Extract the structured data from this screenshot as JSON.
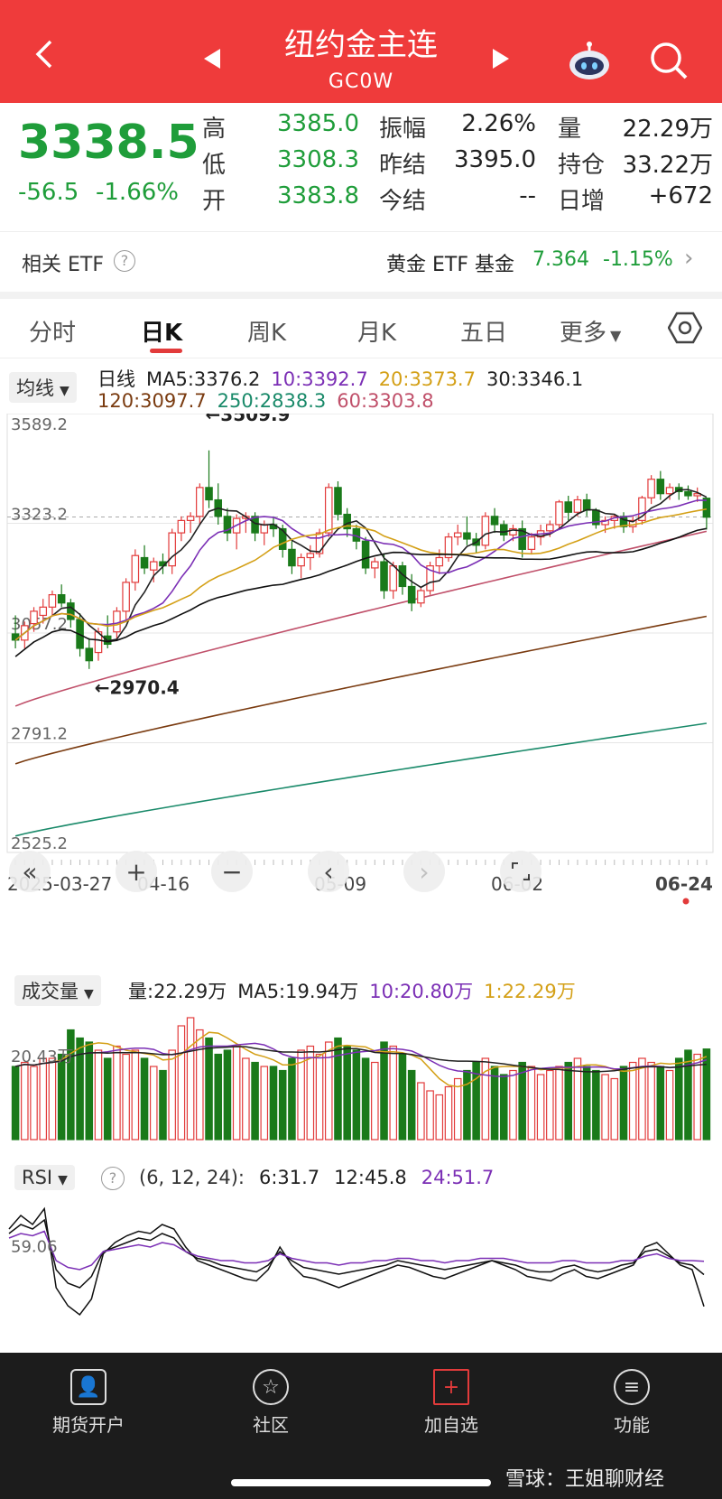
{
  "header": {
    "title": "纽约金主连",
    "code": "GC0W"
  },
  "quote": {
    "price": "3338.5",
    "change": "-56.5",
    "change_pct": "-1.66%",
    "rows": [
      [
        {
          "label": "高",
          "value": "3385.0",
          "color": "green"
        },
        {
          "label": "振幅",
          "value": "2.26%",
          "color": "dark"
        },
        {
          "label": "量",
          "value": "22.29万",
          "color": "dark"
        }
      ],
      [
        {
          "label": "低",
          "value": "3308.3",
          "color": "green"
        },
        {
          "label": "昨结",
          "value": "3395.0",
          "color": "dark"
        },
        {
          "label": "持仓",
          "value": "33.22万",
          "color": "dark"
        }
      ],
      [
        {
          "label": "开",
          "value": "3383.8",
          "color": "green"
        },
        {
          "label": "今结",
          "value": "--",
          "color": "dark"
        },
        {
          "label": "日增",
          "value": "+672",
          "color": "dark"
        }
      ]
    ]
  },
  "etf": {
    "label": "相关 ETF",
    "fund_name": "黄金 ETF 基金",
    "fund_price": "7.364",
    "fund_change": "-1.15%"
  },
  "tabs": [
    "分时",
    "日K",
    "周K",
    "月K",
    "五日",
    "更多"
  ],
  "kline": {
    "ma_dropdown": "均线",
    "legend_row1": [
      {
        "text": "日线",
        "color": "#222222"
      },
      {
        "text": "MA5:3376.2",
        "color": "#222222"
      },
      {
        "text": "10:3392.7",
        "color": "#7b2fb5"
      },
      {
        "text": "20:3373.7",
        "color": "#d4a017"
      },
      {
        "text": "30:3346.1",
        "color": "#222222"
      }
    ],
    "legend_row2": [
      {
        "text": "120:3097.7",
        "color": "#7a3b10"
      },
      {
        "text": "250:2838.3",
        "color": "#1a8a6a"
      },
      {
        "text": "60:3303.8",
        "color": "#c0506a"
      }
    ],
    "y_labels": [
      "3589.2",
      "3323.2",
      "3057.2",
      "2791.2",
      "2525.2"
    ],
    "high_note": "←3509.9",
    "low_note": "←2970.4",
    "x_labels": [
      "2025-03-27",
      "04-16",
      "05-09",
      "06-02",
      "06-24"
    ]
  },
  "chart_data": [
    {
      "type": "candlestick",
      "ylim": [
        2525.2,
        3589.2
      ],
      "y_ticks": [
        3589.2,
        3323.2,
        3057.2,
        2791.2,
        2525.2
      ],
      "x_ticks": [
        "2025-03-27",
        "04-16",
        "05-09",
        "06-02",
        "06-24"
      ],
      "high_mark": 3509.9,
      "low_mark": 2970.4,
      "candles": [
        [
          3055,
          3100,
          3020,
          3040
        ],
        [
          3040,
          3085,
          3020,
          3075
        ],
        [
          3080,
          3120,
          3060,
          3110
        ],
        [
          3100,
          3140,
          3080,
          3120
        ],
        [
          3120,
          3160,
          3100,
          3150
        ],
        [
          3150,
          3175,
          3120,
          3130
        ],
        [
          3130,
          3140,
          3070,
          3090
        ],
        [
          3090,
          3105,
          3000,
          3020
        ],
        [
          3020,
          3045,
          2970,
          2990
        ],
        [
          3010,
          3070,
          2990,
          3060
        ],
        [
          3050,
          3100,
          3020,
          3030
        ],
        [
          3060,
          3120,
          3040,
          3110
        ],
        [
          3110,
          3190,
          3090,
          3180
        ],
        [
          3180,
          3260,
          3160,
          3245
        ],
        [
          3240,
          3270,
          3200,
          3215
        ],
        [
          3210,
          3240,
          3180,
          3230
        ],
        [
          3230,
          3250,
          3200,
          3220
        ],
        [
          3220,
          3310,
          3200,
          3300
        ],
        [
          3300,
          3340,
          3280,
          3330
        ],
        [
          3330,
          3350,
          3300,
          3340
        ],
        [
          3340,
          3420,
          3320,
          3410
        ],
        [
          3410,
          3500,
          3360,
          3380
        ],
        [
          3380,
          3420,
          3320,
          3340
        ],
        [
          3340,
          3360,
          3280,
          3300
        ],
        [
          3300,
          3345,
          3260,
          3335
        ],
        [
          3335,
          3350,
          3300,
          3340
        ],
        [
          3340,
          3350,
          3280,
          3300
        ],
        [
          3300,
          3330,
          3270,
          3320
        ],
        [
          3320,
          3340,
          3290,
          3310
        ],
        [
          3310,
          3320,
          3240,
          3260
        ],
        [
          3260,
          3280,
          3200,
          3220
        ],
        [
          3220,
          3250,
          3190,
          3240
        ],
        [
          3240,
          3270,
          3210,
          3250
        ],
        [
          3250,
          3310,
          3240,
          3300
        ],
        [
          3300,
          3420,
          3290,
          3410
        ],
        [
          3410,
          3425,
          3330,
          3345
        ],
        [
          3345,
          3360,
          3290,
          3310
        ],
        [
          3310,
          3320,
          3260,
          3280
        ],
        [
          3280,
          3290,
          3200,
          3215
        ],
        [
          3215,
          3240,
          3190,
          3230
        ],
        [
          3230,
          3250,
          3140,
          3160
        ],
        [
          3160,
          3230,
          3140,
          3220
        ],
        [
          3220,
          3230,
          3150,
          3170
        ],
        [
          3170,
          3200,
          3110,
          3130
        ],
        [
          3130,
          3170,
          3120,
          3160
        ],
        [
          3160,
          3230,
          3150,
          3220
        ],
        [
          3220,
          3260,
          3200,
          3240
        ],
        [
          3240,
          3300,
          3230,
          3290
        ],
        [
          3290,
          3320,
          3270,
          3300
        ],
        [
          3300,
          3340,
          3270,
          3285
        ],
        [
          3285,
          3300,
          3250,
          3270
        ],
        [
          3270,
          3350,
          3260,
          3340
        ],
        [
          3340,
          3360,
          3300,
          3320
        ],
        [
          3320,
          3330,
          3280,
          3295
        ],
        [
          3295,
          3320,
          3280,
          3310
        ],
        [
          3310,
          3330,
          3240,
          3260
        ],
        [
          3260,
          3300,
          3250,
          3290
        ],
        [
          3290,
          3320,
          3270,
          3305
        ],
        [
          3305,
          3330,
          3290,
          3320
        ],
        [
          3320,
          3380,
          3310,
          3375
        ],
        [
          3375,
          3390,
          3330,
          3350
        ],
        [
          3350,
          3390,
          3340,
          3380
        ],
        [
          3380,
          3395,
          3340,
          3355
        ],
        [
          3355,
          3360,
          3310,
          3320
        ],
        [
          3320,
          3340,
          3300,
          3330
        ],
        [
          3330,
          3345,
          3310,
          3340
        ],
        [
          3340,
          3350,
          3300,
          3315
        ],
        [
          3315,
          3340,
          3300,
          3330
        ],
        [
          3330,
          3390,
          3320,
          3385
        ],
        [
          3385,
          3440,
          3370,
          3430
        ],
        [
          3430,
          3450,
          3380,
          3395
        ],
        [
          3395,
          3420,
          3380,
          3410
        ],
        [
          3410,
          3420,
          3380,
          3400
        ],
        [
          3400,
          3415,
          3380,
          3390
        ],
        [
          3390,
          3410,
          3375,
          3395
        ],
        [
          3384,
          3385,
          3308,
          3338
        ]
      ]
    },
    {
      "type": "bar",
      "name": "成交量",
      "legend": [
        "量:22.29万",
        "MA5:19.94万",
        "10:20.80万",
        "1:22.29万"
      ],
      "y_label": "20.43万",
      "values": [
        18,
        19,
        18,
        20,
        20,
        21,
        27,
        25,
        24,
        22,
        20,
        23,
        21,
        22,
        20,
        18,
        17,
        22,
        28,
        30,
        27,
        25,
        21,
        22,
        23,
        20,
        19,
        18,
        18,
        17,
        20,
        22,
        23,
        21,
        24,
        25,
        23,
        22,
        20,
        19,
        24,
        23,
        21,
        17,
        14,
        12,
        11,
        13,
        15,
        17,
        19,
        20,
        18,
        16,
        17,
        19,
        18,
        16,
        17,
        18,
        19,
        20,
        18,
        17,
        16,
        15,
        18,
        19,
        20,
        19,
        18,
        17,
        20,
        22,
        21,
        22.29
      ]
    },
    {
      "type": "line",
      "name": "RSI",
      "legend": [
        "RSI",
        "(6, 12, 24):",
        "6:31.7",
        "12:45.8",
        "24:51.7"
      ],
      "y_label": "59.06",
      "series": [
        {
          "name": "6",
          "values": [
            66,
            72,
            68,
            75,
            40,
            32,
            28,
            35,
            55,
            60,
            63,
            65,
            64,
            68,
            66,
            58,
            52,
            50,
            48,
            46,
            44,
            43,
            48,
            58,
            50,
            45,
            44,
            42,
            40,
            42,
            44,
            46,
            48,
            50,
            49,
            47,
            45,
            44,
            46,
            48,
            50,
            52,
            50,
            48,
            45,
            44,
            43,
            46,
            48,
            45,
            44,
            46,
            48,
            50,
            58,
            60,
            55,
            50,
            48,
            31.7
          ]
        },
        {
          "name": "12",
          "values": [
            64,
            68,
            66,
            70,
            48,
            42,
            40,
            45,
            56,
            58,
            60,
            62,
            61,
            64,
            62,
            56,
            53,
            52,
            50,
            49,
            48,
            47,
            50,
            56,
            52,
            49,
            48,
            47,
            46,
            47,
            48,
            49,
            50,
            52,
            51,
            50,
            49,
            48,
            49,
            50,
            51,
            52,
            51,
            50,
            48,
            47,
            47,
            49,
            50,
            48,
            47,
            48,
            50,
            51,
            56,
            57,
            54,
            51,
            50,
            45.8
          ]
        },
        {
          "name": "24",
          "values": [
            62,
            64,
            63,
            65,
            52,
            49,
            48,
            50,
            56,
            57,
            58,
            59,
            58,
            60,
            59,
            56,
            54,
            53,
            52,
            52,
            51,
            51,
            52,
            55,
            53,
            52,
            51,
            51,
            50,
            51,
            51,
            52,
            52,
            53,
            53,
            52,
            52,
            51,
            52,
            52,
            53,
            53,
            53,
            52,
            51,
            51,
            51,
            52,
            52,
            51,
            51,
            51,
            52,
            52,
            54,
            55,
            53,
            52,
            52,
            51.7
          ]
        }
      ]
    }
  ],
  "nav": [
    {
      "label": "期货开户",
      "icon": "user-icon"
    },
    {
      "label": "社区",
      "icon": "community-icon"
    },
    {
      "label": "加自选",
      "icon": "add-watch-icon"
    },
    {
      "label": "功能",
      "icon": "menu-icon"
    }
  ],
  "watermark": "雪球：王姐聊财经"
}
